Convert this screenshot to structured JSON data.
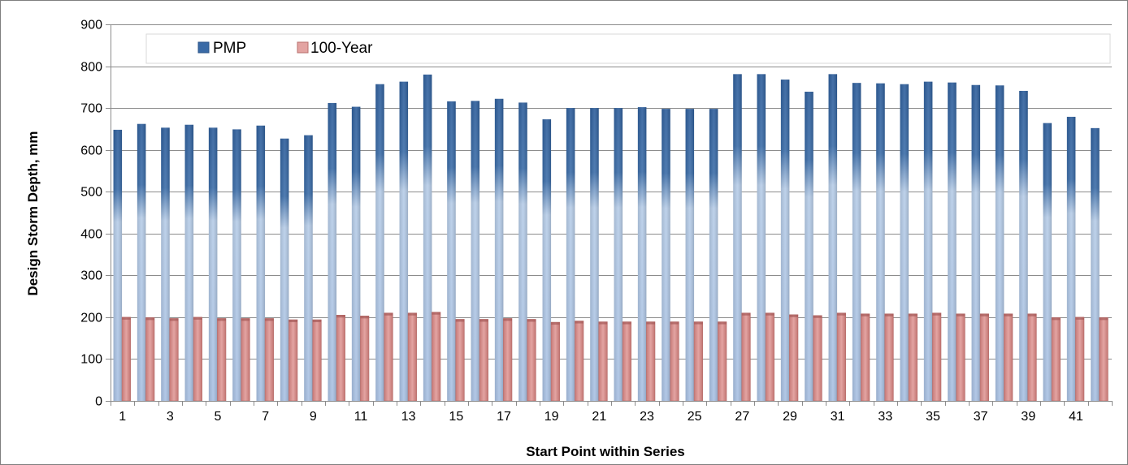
{
  "chart_data": {
    "type": "bar",
    "title": "",
    "xlabel": "Start Point within Series",
    "ylabel": "Design Storm Depth, mm",
    "ylim": [
      0,
      900
    ],
    "yticks": [
      0,
      100,
      200,
      300,
      400,
      500,
      600,
      700,
      800,
      900
    ],
    "grid": "horizontal",
    "legend_position": "top-left",
    "categories": [
      1,
      2,
      3,
      4,
      5,
      6,
      7,
      8,
      9,
      10,
      11,
      12,
      13,
      14,
      15,
      16,
      17,
      18,
      19,
      20,
      21,
      22,
      23,
      24,
      25,
      26,
      27,
      28,
      29,
      30,
      31,
      32,
      33,
      34,
      35,
      36,
      37,
      38,
      39,
      40,
      41,
      42
    ],
    "xtick_labels": [
      "1",
      "3",
      "5",
      "7",
      "9",
      "11",
      "13",
      "15",
      "17",
      "19",
      "21",
      "23",
      "25",
      "27",
      "29",
      "31",
      "33",
      "35",
      "37",
      "39",
      "41"
    ],
    "series": [
      {
        "name": "PMP",
        "color": "#3a6aa6",
        "values": [
          648,
          662,
          653,
          660,
          653,
          649,
          658,
          627,
          635,
          712,
          703,
          757,
          763,
          780,
          716,
          717,
          722,
          713,
          673,
          700,
          700,
          700,
          702,
          698,
          698,
          698,
          781,
          781,
          768,
          739,
          781,
          760,
          759,
          757,
          763,
          761,
          755,
          754,
          741,
          664,
          679,
          652
        ]
      },
      {
        "name": "100-Year",
        "color": "#d99694",
        "values": [
          200,
          199,
          197,
          200,
          197,
          197,
          197,
          194,
          194,
          205,
          203,
          210,
          210,
          212,
          195,
          195,
          197,
          195,
          188,
          191,
          189,
          189,
          189,
          189,
          189,
          189,
          210,
          210,
          206,
          204,
          210,
          208,
          208,
          208,
          210,
          208,
          208,
          208,
          208,
          199,
          200,
          199
        ]
      }
    ]
  }
}
